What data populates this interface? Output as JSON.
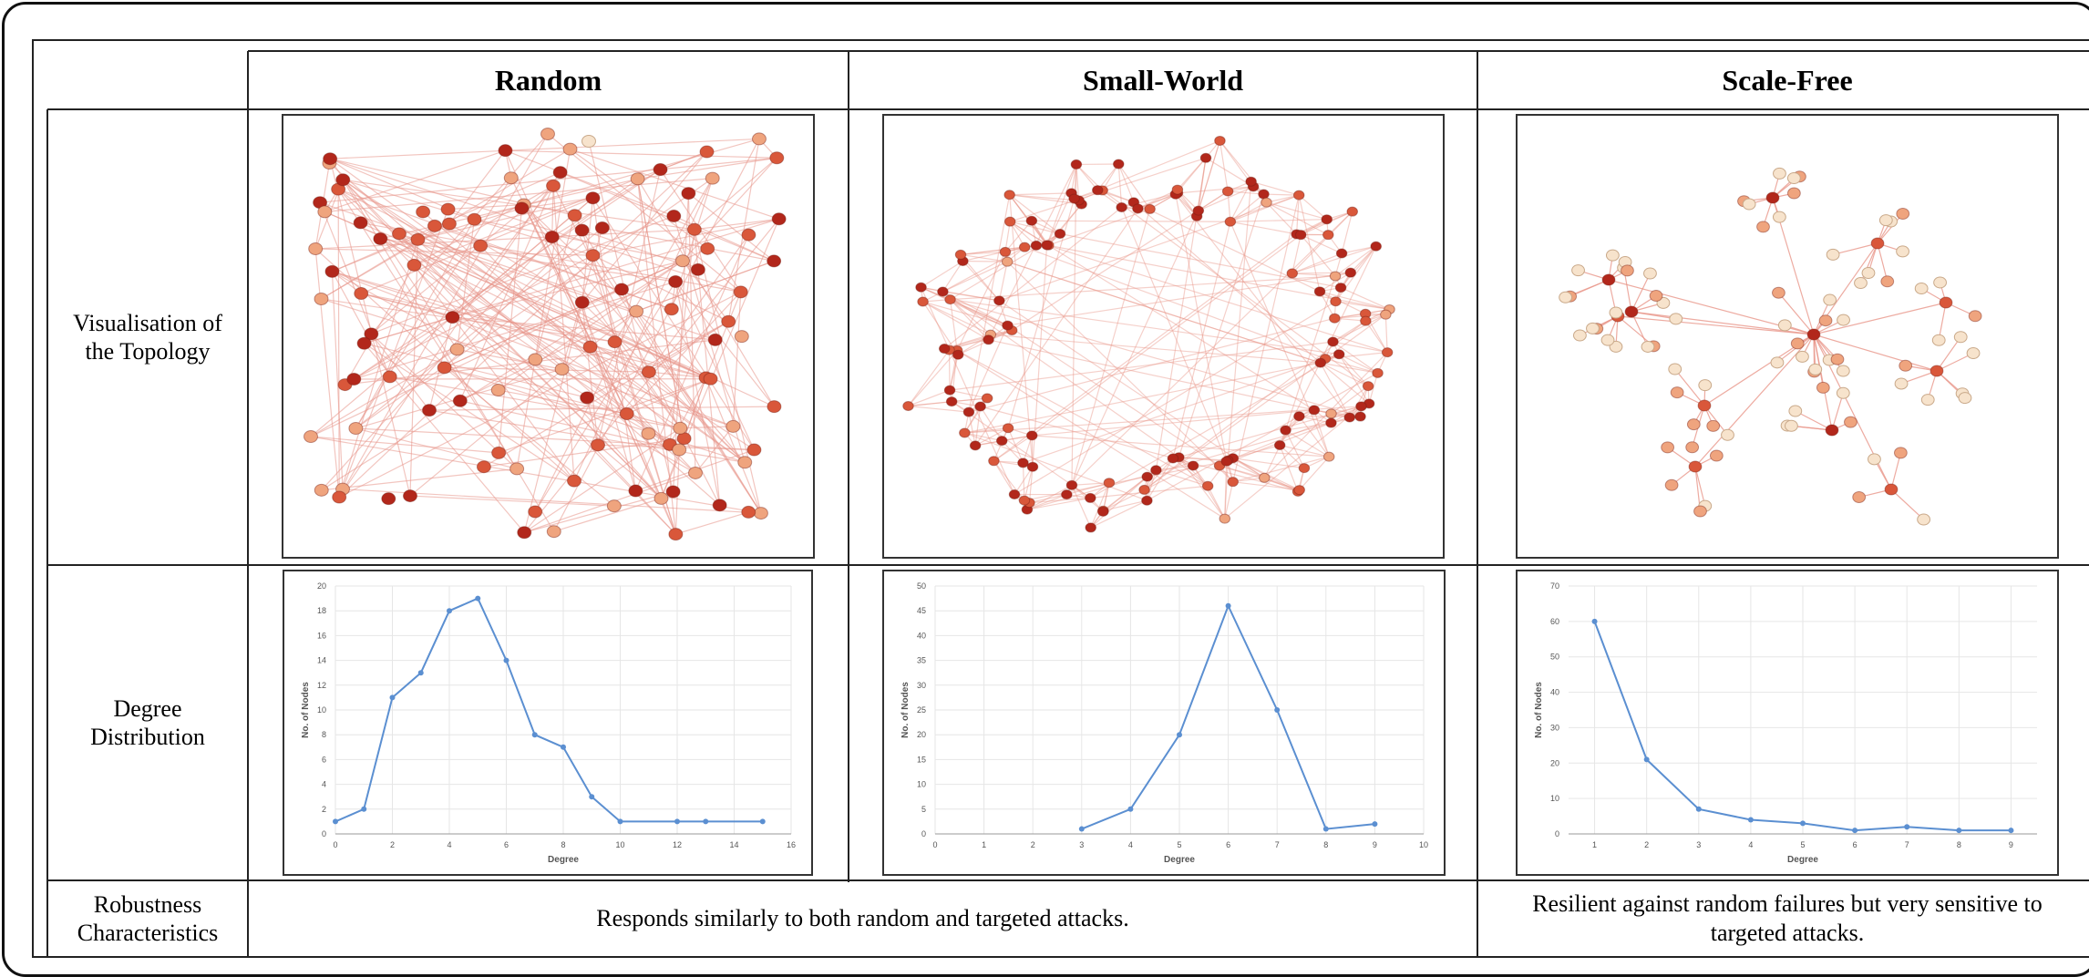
{
  "headers": {
    "random": "Random",
    "small_world": "Small-World",
    "scale_free": "Scale-Free"
  },
  "rows": {
    "topology": "Visualisation of\nthe Topology",
    "degree": "Degree\nDistribution",
    "robustness": "Robustness\nCharacteristics"
  },
  "robustness": {
    "random_small_world": "Responds similarly to both random and targeted attacks.",
    "scale_free": "Resilient against random failures but very sensitive to targeted attacks."
  },
  "colors": {
    "line": "#5b8fd1",
    "grid": "#e6e6e6",
    "node_dark": "#b2271b",
    "node_mid": "#d9573a",
    "node_light": "#efa47e",
    "node_pale": "#f7e3cc",
    "edge": "#e8968a"
  },
  "chart_data": [
    {
      "type": "line",
      "xlabel": "Degree",
      "ylabel": "No. of Nodes",
      "xlim": [
        0,
        16
      ],
      "ylim": [
        0,
        20
      ],
      "xticks": [
        0,
        2,
        4,
        6,
        8,
        10,
        12,
        14,
        16
      ],
      "yticks": [
        0,
        2,
        4,
        6,
        8,
        10,
        12,
        14,
        16,
        18,
        20
      ],
      "x": [
        0,
        1,
        2,
        3,
        4,
        5,
        6,
        7,
        8,
        9,
        10,
        12,
        13,
        15
      ],
      "y": [
        1,
        2,
        11,
        13,
        18,
        19,
        14,
        8,
        7,
        3,
        1,
        1,
        1,
        1
      ]
    },
    {
      "type": "line",
      "xlabel": "Degree",
      "ylabel": "No. of Nodes",
      "xlim": [
        0,
        10
      ],
      "ylim": [
        0,
        50
      ],
      "xticks": [
        0,
        1,
        2,
        3,
        4,
        5,
        6,
        7,
        8,
        9,
        10
      ],
      "yticks": [
        0,
        5,
        10,
        15,
        20,
        25,
        30,
        35,
        40,
        45,
        50
      ],
      "x": [
        3,
        4,
        5,
        6,
        7,
        8,
        9
      ],
      "y": [
        1,
        5,
        20,
        46,
        25,
        1,
        2
      ]
    },
    {
      "type": "line",
      "xlabel": "Degree",
      "ylabel": "No. of Nodes",
      "xlim": [
        0.5,
        9.5
      ],
      "ylim": [
        0,
        70
      ],
      "xticks": [
        1,
        2,
        3,
        4,
        5,
        6,
        7,
        8,
        9
      ],
      "yticks": [
        0,
        10,
        20,
        30,
        40,
        50,
        60,
        70
      ],
      "x": [
        1,
        2,
        3,
        4,
        5,
        6,
        7,
        8,
        9
      ],
      "y": [
        60,
        21,
        7,
        4,
        3,
        1,
        2,
        1,
        1
      ]
    }
  ]
}
